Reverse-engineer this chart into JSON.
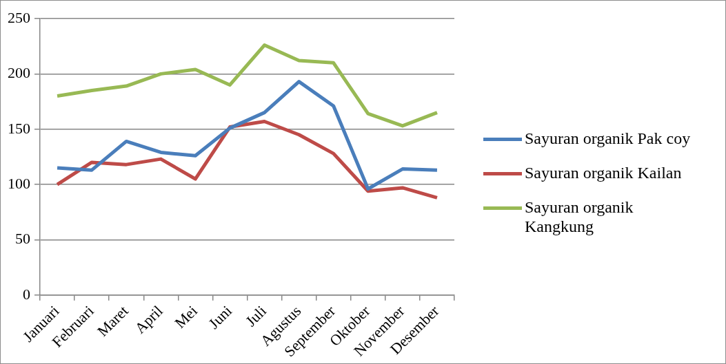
{
  "chart_data": {
    "type": "line",
    "categories": [
      "Januari",
      "Februari",
      "Maret",
      "April",
      "Mei",
      "Juni",
      "Juli",
      "Agustus",
      "September",
      "Oktober",
      "November",
      "Desember"
    ],
    "series": [
      {
        "name": "Sayuran organik Pak coy",
        "color": "#4a7ebb",
        "values": [
          115,
          113,
          139,
          129,
          126,
          151,
          165,
          193,
          171,
          96,
          114,
          113
        ]
      },
      {
        "name": "Sayuran organik Kailan",
        "color": "#be4b48",
        "values": [
          100,
          120,
          118,
          123,
          105,
          152,
          157,
          145,
          128,
          94,
          97,
          88
        ]
      },
      {
        "name": "Sayuran organik Kangkung",
        "color": "#98b954",
        "values": [
          180,
          185,
          189,
          200,
          204,
          190,
          226,
          212,
          210,
          164,
          153,
          165
        ]
      }
    ],
    "ylim": [
      0,
      250
    ],
    "yticks": [
      0,
      50,
      100,
      150,
      200,
      250
    ],
    "grid": "y",
    "legend": "right",
    "marker": "none",
    "line_style": "solid"
  }
}
